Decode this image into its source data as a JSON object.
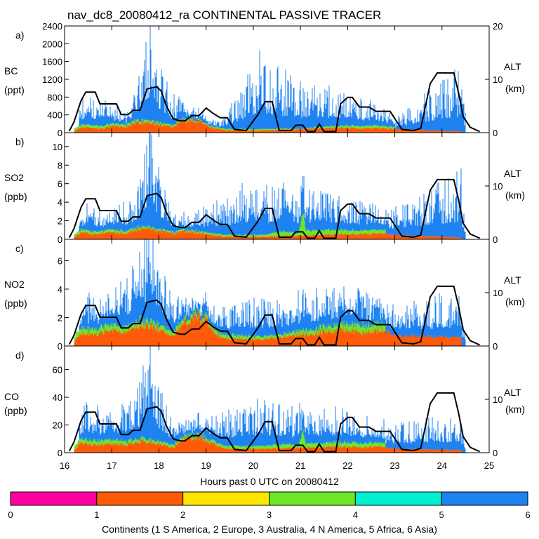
{
  "title": "nav_dc8_20080412_ra CONTINENTAL PASSIVE TRACER",
  "xlabel": "Hours past 0 UTC on 20080412",
  "x_ticks": [
    "16",
    "17",
    "18",
    "19",
    "20",
    "21",
    "22",
    "23",
    "24",
    "25"
  ],
  "xlim": [
    16,
    25
  ],
  "right_axis": {
    "label": "ALT",
    "unit": "(km)",
    "ticks": [
      "0",
      "10",
      "20"
    ],
    "range": [
      0,
      20
    ]
  },
  "colorbar": {
    "label": "Continents (1 S America, 2 Europe, 3 Australia, 4 N America, 5 Africa, 6 Asia)",
    "ticks": [
      "0",
      "1",
      "2",
      "3",
      "4",
      "5",
      "6"
    ],
    "colors": [
      "#ff00a0",
      "#ff5a0a",
      "#ffe600",
      "#6ee628",
      "#00f0d2",
      "#1e82f0"
    ]
  },
  "colors": {
    "europe": "#ff5a0a",
    "n_america": "#6ee628",
    "asia": "#1e82f0",
    "altitude": "#000000"
  },
  "altitude_track": [
    [
      16.1,
      0.3
    ],
    [
      16.2,
      2
    ],
    [
      16.35,
      6
    ],
    [
      16.45,
      7.6
    ],
    [
      16.65,
      7.6
    ],
    [
      16.75,
      5.4
    ],
    [
      16.95,
      5.4
    ],
    [
      17.1,
      5.4
    ],
    [
      17.2,
      3.4
    ],
    [
      17.35,
      3.4
    ],
    [
      17.45,
      4.2
    ],
    [
      17.6,
      4.2
    ],
    [
      17.75,
      8.2
    ],
    [
      17.95,
      8.6
    ],
    [
      18.05,
      7.8
    ],
    [
      18.15,
      5.2
    ],
    [
      18.3,
      2.6
    ],
    [
      18.45,
      2.2
    ],
    [
      18.55,
      2.2
    ],
    [
      18.7,
      3.2
    ],
    [
      18.85,
      3.2
    ],
    [
      19.0,
      4.6
    ],
    [
      19.15,
      3.6
    ],
    [
      19.3,
      2.8
    ],
    [
      19.45,
      2.8
    ],
    [
      19.6,
      0.6
    ],
    [
      19.85,
      0.4
    ],
    [
      20.1,
      3.4
    ],
    [
      20.25,
      5.8
    ],
    [
      20.4,
      5.8
    ],
    [
      20.55,
      0.4
    ],
    [
      20.8,
      0.4
    ],
    [
      20.9,
      1.4
    ],
    [
      21.05,
      1.4
    ],
    [
      21.15,
      0.2
    ],
    [
      21.3,
      0.2
    ],
    [
      21.4,
      1.6
    ],
    [
      21.5,
      0.2
    ],
    [
      21.75,
      0.2
    ],
    [
      21.85,
      5.4
    ],
    [
      22.0,
      6.6
    ],
    [
      22.1,
      6.6
    ],
    [
      22.25,
      4.8
    ],
    [
      22.45,
      4.8
    ],
    [
      22.6,
      4.0
    ],
    [
      22.9,
      4.0
    ],
    [
      23.15,
      0.6
    ],
    [
      23.4,
      0.4
    ],
    [
      23.55,
      0.8
    ],
    [
      23.75,
      9.2
    ],
    [
      23.9,
      11.2
    ],
    [
      24.25,
      11.2
    ],
    [
      24.35,
      7.5
    ],
    [
      24.45,
      3.0
    ],
    [
      24.6,
      1.0
    ],
    [
      24.8,
      0.2
    ]
  ],
  "chart_data": [
    {
      "type": "bar",
      "panel": "a)",
      "species": "BC",
      "unit": "(ppt)",
      "title": "nav_dc8_20080412_ra CONTINENTAL PASSIVE TRACER",
      "xlabel": "Hours past 0 UTC on 20080412",
      "ylabel": "BC (ppt)",
      "ylim": [
        0,
        2400
      ],
      "yticks": [
        "0",
        "400",
        "800",
        "1200",
        "1600",
        "2000",
        "2400"
      ],
      "y2label": "ALT (km)",
      "y2lim": [
        0,
        20
      ],
      "series": [
        {
          "name": "Europe",
          "points": [
            [
              16.2,
              40
            ],
            [
              16.35,
              130
            ],
            [
              16.55,
              110
            ],
            [
              16.8,
              90
            ],
            [
              17.0,
              160
            ],
            [
              17.3,
              130
            ],
            [
              17.5,
              230
            ],
            [
              17.75,
              260
            ],
            [
              18.0,
              180
            ],
            [
              18.3,
              130
            ],
            [
              18.5,
              280
            ],
            [
              18.85,
              270
            ],
            [
              19.1,
              120
            ],
            [
              19.4,
              60
            ],
            [
              20.1,
              50
            ],
            [
              20.3,
              60
            ],
            [
              21.9,
              120
            ],
            [
              22.3,
              100
            ],
            [
              22.7,
              110
            ],
            [
              23.0,
              80
            ],
            [
              24.4,
              30
            ]
          ]
        },
        {
          "name": "N America",
          "points": [
            [
              16.2,
              60
            ],
            [
              16.45,
              60
            ],
            [
              17.0,
              60
            ],
            [
              17.4,
              60
            ],
            [
              18.0,
              50
            ],
            [
              18.5,
              40
            ],
            [
              19.0,
              30
            ],
            [
              20.2,
              30
            ],
            [
              21.0,
              10
            ],
            [
              22.0,
              50
            ],
            [
              22.5,
              60
            ],
            [
              23.0,
              40
            ]
          ]
        },
        {
          "name": "Asia",
          "points": [
            [
              16.3,
              300
            ],
            [
              16.45,
              550
            ],
            [
              16.9,
              380
            ],
            [
              17.3,
              200
            ],
            [
              17.55,
              700
            ],
            [
              17.7,
              1250
            ],
            [
              17.82,
              2200
            ],
            [
              17.9,
              1600
            ],
            [
              18.0,
              1000
            ],
            [
              18.3,
              500
            ],
            [
              18.6,
              250
            ],
            [
              18.9,
              220
            ],
            [
              19.3,
              80
            ],
            [
              20.15,
              1300
            ],
            [
              20.3,
              1100
            ],
            [
              21.9,
              560
            ],
            [
              22.1,
              500
            ],
            [
              22.5,
              450
            ],
            [
              22.75,
              350
            ],
            [
              23.0,
              200
            ],
            [
              24.4,
              1100
            ],
            [
              24.5,
              300
            ]
          ]
        }
      ]
    },
    {
      "type": "bar",
      "panel": "b)",
      "species": "SO2",
      "unit": "(ppb)",
      "ylim": [
        0,
        11.5
      ],
      "yticks": [
        "0",
        "2",
        "4",
        "6",
        "8",
        "10"
      ],
      "y2label": "ALT (km)",
      "y2lim": [
        0,
        20
      ],
      "series": [
        {
          "name": "Europe",
          "points": [
            [
              16.2,
              0.3
            ],
            [
              16.35,
              0.8
            ],
            [
              16.6,
              0.6
            ],
            [
              17.0,
              0.8
            ],
            [
              17.3,
              0.7
            ],
            [
              17.55,
              1.1
            ],
            [
              17.8,
              1.2
            ],
            [
              18.05,
              0.9
            ],
            [
              18.3,
              0.6
            ],
            [
              18.5,
              0.9
            ],
            [
              18.8,
              0.8
            ],
            [
              19.1,
              0.5
            ],
            [
              19.4,
              0.3
            ],
            [
              20.2,
              0.3
            ],
            [
              21.9,
              0.6
            ],
            [
              22.3,
              0.6
            ],
            [
              22.7,
              0.7
            ],
            [
              23.0,
              0.5
            ],
            [
              24.4,
              0.2
            ]
          ]
        },
        {
          "name": "N America",
          "points": [
            [
              16.2,
              0.3
            ],
            [
              17.0,
              0.3
            ],
            [
              18.0,
              0.2
            ],
            [
              20.2,
              0.2
            ],
            [
              20.6,
              0.5
            ],
            [
              20.95,
              0.3
            ],
            [
              21.05,
              2.9
            ],
            [
              21.1,
              0.6
            ],
            [
              22.2,
              0.4
            ],
            [
              22.8,
              0.4
            ]
          ]
        },
        {
          "name": "Asia",
          "points": [
            [
              16.3,
              1.2
            ],
            [
              16.45,
              2.2
            ],
            [
              16.9,
              1.6
            ],
            [
              17.55,
              3.0
            ],
            [
              17.7,
              6.0
            ],
            [
              17.82,
              11.0
            ],
            [
              17.9,
              8.0
            ],
            [
              18.0,
              4.5
            ],
            [
              18.3,
              1.5
            ],
            [
              18.6,
              1.2
            ],
            [
              20.15,
              5.0
            ],
            [
              20.3,
              4.0
            ],
            [
              22.0,
              2.5
            ],
            [
              22.5,
              2.2
            ],
            [
              22.75,
              1.8
            ],
            [
              24.4,
              5.5
            ],
            [
              24.5,
              1.2
            ]
          ]
        }
      ]
    },
    {
      "type": "bar",
      "panel": "c)",
      "species": "NO2",
      "unit": "(ppb)",
      "ylim": [
        0,
        7.5
      ],
      "yticks": [
        "0",
        "2",
        "4",
        "6"
      ],
      "y2label": "ALT (km)",
      "y2lim": [
        0,
        20
      ],
      "series": [
        {
          "name": "Europe",
          "points": [
            [
              16.2,
              0.3
            ],
            [
              16.35,
              1.0
            ],
            [
              16.6,
              0.8
            ],
            [
              17.0,
              1.2
            ],
            [
              17.3,
              1.0
            ],
            [
              17.55,
              1.6
            ],
            [
              17.8,
              1.5
            ],
            [
              18.05,
              1.2
            ],
            [
              18.3,
              0.8
            ],
            [
              18.5,
              1.8
            ],
            [
              18.8,
              2.2
            ],
            [
              19.0,
              1.8
            ],
            [
              19.3,
              0.6
            ],
            [
              20.2,
              0.5
            ],
            [
              21.9,
              1.2
            ],
            [
              22.3,
              1.0
            ],
            [
              22.7,
              1.2
            ],
            [
              23.0,
              0.8
            ],
            [
              24.4,
              0.6
            ]
          ]
        },
        {
          "name": "N America",
          "points": [
            [
              16.2,
              0.4
            ],
            [
              17.0,
              0.4
            ],
            [
              18.5,
              0.3
            ],
            [
              20.2,
              0.2
            ],
            [
              20.6,
              0.2
            ],
            [
              21.05,
              0.3
            ],
            [
              22.2,
              0.5
            ],
            [
              22.8,
              0.5
            ]
          ]
        },
        {
          "name": "Asia",
          "points": [
            [
              16.3,
              1.0
            ],
            [
              16.45,
              2.0
            ],
            [
              16.9,
              1.5
            ],
            [
              17.55,
              3.5
            ],
            [
              17.7,
              4.8
            ],
            [
              17.82,
              6.4
            ],
            [
              17.9,
              5.0
            ],
            [
              18.0,
              3.5
            ],
            [
              18.3,
              1.8
            ],
            [
              18.6,
              0.8
            ],
            [
              20.15,
              2.2
            ],
            [
              20.3,
              2.0
            ],
            [
              22.0,
              2.0
            ],
            [
              22.5,
              1.6
            ],
            [
              22.75,
              1.4
            ],
            [
              24.4,
              2.5
            ],
            [
              24.5,
              0.8
            ]
          ]
        }
      ]
    },
    {
      "type": "bar",
      "panel": "d)",
      "species": "CO",
      "unit": "(ppb)",
      "ylim": [
        0,
        77
      ],
      "yticks": [
        "0",
        "20",
        "40",
        "60"
      ],
      "y2label": "ALT (km)",
      "y2lim": [
        0,
        20
      ],
      "series": [
        {
          "name": "Europe",
          "points": [
            [
              16.2,
              2
            ],
            [
              16.35,
              8
            ],
            [
              16.6,
              6
            ],
            [
              17.0,
              7
            ],
            [
              17.3,
              6
            ],
            [
              17.55,
              9
            ],
            [
              17.8,
              8
            ],
            [
              18.05,
              6
            ],
            [
              18.3,
              4
            ],
            [
              18.5,
              10
            ],
            [
              18.8,
              12
            ],
            [
              19.1,
              8
            ],
            [
              19.4,
              3
            ],
            [
              20.2,
              3
            ],
            [
              21.9,
              5
            ],
            [
              22.3,
              4
            ],
            [
              22.7,
              5
            ],
            [
              23.0,
              3
            ],
            [
              24.4,
              2
            ]
          ]
        },
        {
          "name": "N America",
          "points": [
            [
              16.2,
              3
            ],
            [
              17.0,
              3
            ],
            [
              18.0,
              2
            ],
            [
              20.2,
              2
            ],
            [
              20.6,
              3
            ],
            [
              20.95,
              2
            ],
            [
              21.05,
              13
            ],
            [
              21.1,
              3
            ],
            [
              22.2,
              3
            ],
            [
              22.8,
              3
            ]
          ]
        },
        {
          "name": "Asia",
          "points": [
            [
              16.3,
              10
            ],
            [
              16.45,
              22
            ],
            [
              16.9,
              14
            ],
            [
              17.55,
              28
            ],
            [
              17.7,
              45
            ],
            [
              17.82,
              74
            ],
            [
              17.9,
              52
            ],
            [
              18.0,
              34
            ],
            [
              18.3,
              12
            ],
            [
              18.6,
              8
            ],
            [
              20.15,
              28
            ],
            [
              20.3,
              22
            ],
            [
              22.0,
              18
            ],
            [
              22.5,
              14
            ],
            [
              22.75,
              12
            ],
            [
              24.4,
              20
            ],
            [
              24.5,
              6
            ]
          ]
        }
      ]
    }
  ]
}
